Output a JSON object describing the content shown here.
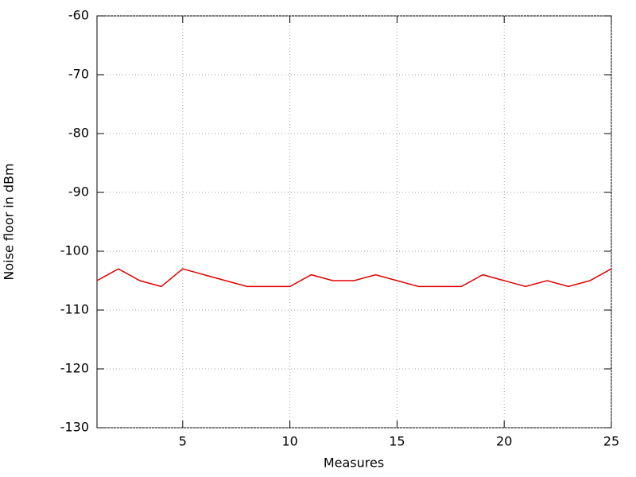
{
  "chart_data": {
    "type": "line",
    "x": [
      1,
      2,
      3,
      4,
      5,
      6,
      7,
      8,
      9,
      10,
      11,
      12,
      13,
      14,
      15,
      16,
      17,
      18,
      19,
      20,
      21,
      22,
      23,
      24,
      25
    ],
    "values": [
      -105,
      -103,
      -105,
      -106,
      -103,
      -104,
      -105,
      -106,
      -106,
      -106,
      -104,
      -105,
      -105,
      -104,
      -105,
      -106,
      -106,
      -106,
      -104,
      -105,
      -106,
      -105,
      -106,
      -105,
      -103
    ],
    "color": "#e00000",
    "xlabel": "Measures",
    "ylabel": "Noise floor in dBm",
    "xlim": [
      1,
      25
    ],
    "xticks": [
      5,
      10,
      15,
      20,
      25
    ],
    "ylim": [
      -130,
      -60
    ],
    "yticks": [
      -130,
      -120,
      -110,
      -100,
      -90,
      -80,
      -70,
      -60
    ],
    "grid": true
  }
}
